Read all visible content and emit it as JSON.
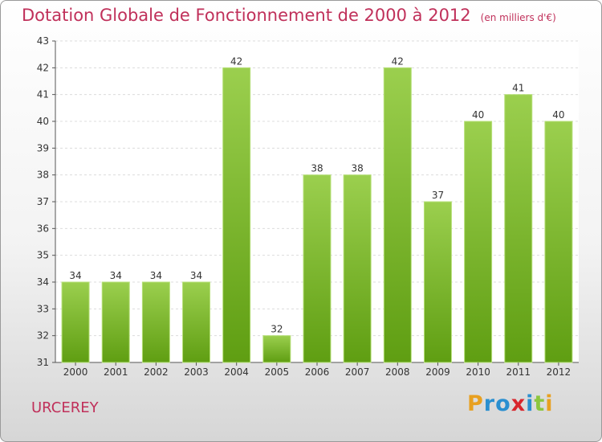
{
  "header": {
    "title": "Dotation Globale de Fonctionnement de 2000 à 2012",
    "subtitle": "(en milliers d'€)"
  },
  "footer": {
    "place": "URCEREY",
    "logo_text": "Proxiti",
    "logo_letters": [
      {
        "ch": "P",
        "color": "#e8a020"
      },
      {
        "ch": "r",
        "color": "#2a8fd0"
      },
      {
        "ch": "o",
        "color": "#2a8fd0"
      },
      {
        "ch": "x",
        "color": "#d8262d"
      },
      {
        "ch": "i",
        "color": "#2a8fd0"
      },
      {
        "ch": "t",
        "color": "#8cc63e"
      },
      {
        "ch": "i",
        "color": "#e8a020"
      }
    ]
  },
  "colors": {
    "accent": "#c0305a",
    "bar_top": "#9bcf4e",
    "bar_bottom": "#5f9e12",
    "bar_edge": "#b7e07a"
  },
  "chart_data": {
    "type": "bar",
    "title": "Dotation Globale de Fonctionnement de 2000 à 2012",
    "subtitle": "(en milliers d'€)",
    "categories": [
      "2000",
      "2001",
      "2002",
      "2003",
      "2004",
      "2005",
      "2006",
      "2007",
      "2008",
      "2009",
      "2010",
      "2011",
      "2012"
    ],
    "values": [
      34,
      34,
      34,
      34,
      42,
      32,
      38,
      38,
      42,
      37,
      40,
      41,
      40
    ],
    "ylim": [
      31,
      43
    ],
    "yticks": [
      31,
      32,
      33,
      34,
      35,
      36,
      37,
      38,
      39,
      40,
      41,
      42,
      43
    ],
    "grid": true,
    "data_labels": true,
    "xlabel": "",
    "ylabel": ""
  }
}
